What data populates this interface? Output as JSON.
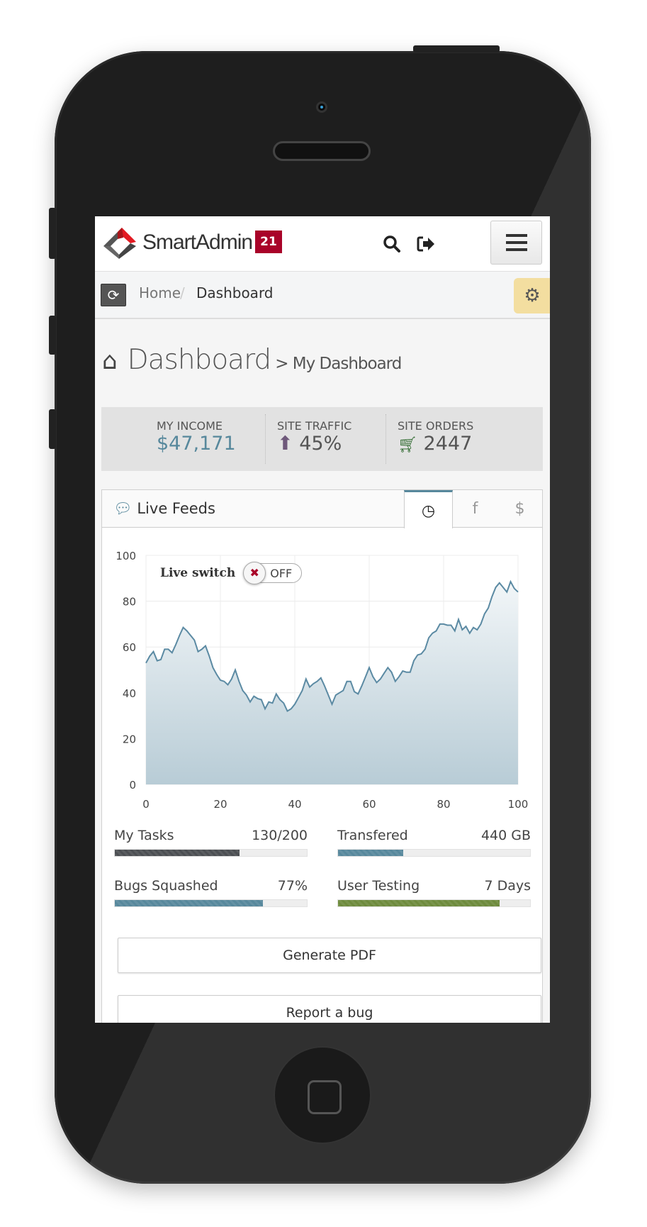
{
  "header": {
    "brand": "SmartAdmin",
    "badge": "21",
    "search_icon": "search-icon",
    "logout_icon": "logout-icon",
    "menu_icon": "hamburger-icon"
  },
  "breadcrumb": {
    "items": [
      "Home",
      "Dashboard"
    ],
    "separator": "/"
  },
  "page": {
    "title": "Dashboard",
    "subtitle": "> My Dashboard"
  },
  "stats": [
    {
      "label": "MY INCOME",
      "value": "$47,171",
      "color": "#57889c"
    },
    {
      "label": "SITE TRAFFIC",
      "value": "45%",
      "icon": "arrow-circle-up-icon",
      "color": "#6e587a"
    },
    {
      "label": "SITE ORDERS",
      "value": "2447",
      "icon": "cart-icon",
      "color": "#356e35"
    }
  ],
  "widget": {
    "title": "Live Feeds",
    "tabs": [
      {
        "icon": "clock-icon",
        "glyph": "◷",
        "active": true
      },
      {
        "icon": "facebook-icon",
        "glyph": "f"
      },
      {
        "icon": "dollar-icon",
        "glyph": "$"
      }
    ],
    "live_switch": {
      "label": "Live switch",
      "state": "OFF"
    }
  },
  "chart_data": {
    "type": "area",
    "xlim": [
      0,
      100
    ],
    "ylim": [
      0,
      100
    ],
    "x_ticks": [
      "0",
      "20",
      "40",
      "60",
      "80",
      "100"
    ],
    "y_ticks": [
      "0",
      "20",
      "40",
      "60",
      "80",
      "100"
    ],
    "grid": true,
    "line_color": "#5b8aa3",
    "values": [
      53,
      56,
      58,
      54,
      54.5,
      59,
      59,
      57.5,
      61,
      65,
      68.5,
      67,
      65,
      63,
      58,
      59,
      60.5,
      56,
      51,
      48,
      45.5,
      45,
      43.5,
      46,
      50,
      45,
      41,
      39,
      36,
      38.5,
      37.5,
      37,
      33,
      36,
      35.5,
      39.5,
      37,
      35.5,
      32,
      33,
      35,
      38,
      41,
      46,
      42.5,
      44,
      45,
      46.5,
      43,
      39,
      35,
      39,
      40,
      41,
      45,
      45,
      40.5,
      39.5,
      43,
      47,
      51,
      47,
      44.5,
      46,
      48.5,
      51,
      49,
      45,
      47,
      49.5,
      49,
      49,
      54,
      56.5,
      57,
      59,
      64,
      66,
      67,
      70,
      70,
      69.5,
      69.5,
      67,
      72,
      67.5,
      69,
      66,
      68.5,
      67.5,
      70,
      74.5,
      77,
      82,
      86,
      88,
      86,
      84,
      88.5,
      85.5,
      84
    ]
  },
  "progress": [
    {
      "label": "My Tasks",
      "value": "130/200",
      "percent": 65,
      "color": "#4c4f53"
    },
    {
      "label": "Transfered",
      "value": "440 GB",
      "percent": 34,
      "color": "#57889c"
    },
    {
      "label": "Bugs Squashed",
      "value": "77%",
      "percent": 77,
      "color": "#57889c"
    },
    {
      "label": "User Testing",
      "value": "7 Days",
      "percent": 84,
      "color": "#6e8b3d"
    }
  ],
  "buttons": {
    "generate_pdf": "Generate PDF",
    "report_bug": "Report a bug"
  }
}
